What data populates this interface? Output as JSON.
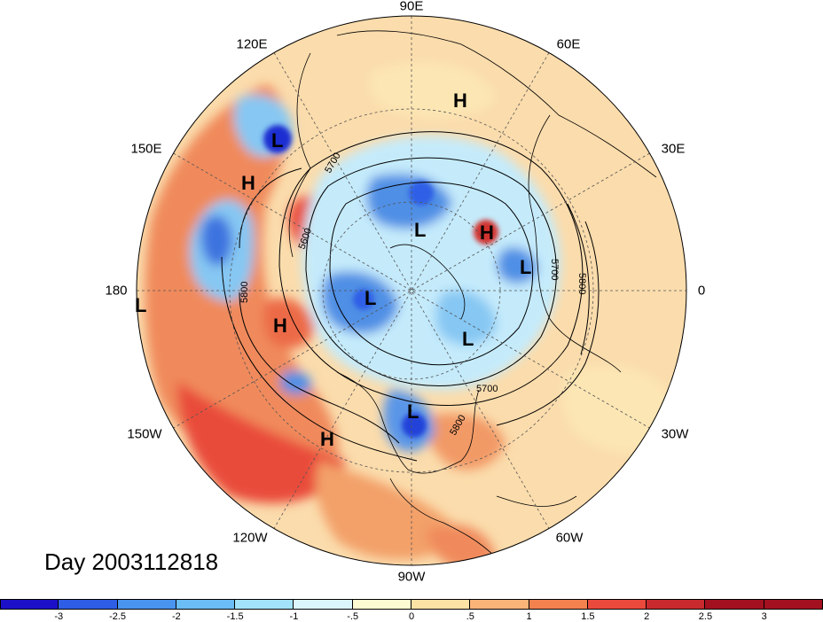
{
  "map": {
    "title": "Day 2003112818",
    "lon_labels": {
      "e90": "90E",
      "e120": "120E",
      "e60": "60E",
      "e150": "150E",
      "e30": "30E",
      "d180": "180",
      "d0": "0",
      "w150": "150W",
      "w30": "30W",
      "w120": "120W",
      "w60": "60W",
      "w90": "90W"
    },
    "contour_labels": {
      "c5600": "5600",
      "c5700a": "5700",
      "c5700b": "5700",
      "c5700c": "5700",
      "c5800a": "5800",
      "c5800b": "5800",
      "c5800c": "5800"
    },
    "pressure_centers": {
      "high_symbol": "H",
      "low_symbol": "L"
    },
    "colors": {
      "ocean_background": "#fbdcac",
      "contour": "#000000",
      "grid": "#555555"
    }
  },
  "colorbar": {
    "tick_labels": [
      "-3",
      "-2.5",
      "-2",
      "-1.5",
      "-1",
      "-.5",
      "0",
      ".5",
      "1",
      "1.5",
      "2",
      "2.5",
      "3"
    ],
    "colors": [
      "#1c10c9",
      "#2e5ee6",
      "#4894ee",
      "#6bbdf5",
      "#a2e3fb",
      "#dcf6fd",
      "#fdfbd2",
      "#fde2a6",
      "#fab478",
      "#f3824f",
      "#ea4a3c",
      "#c92a2e",
      "#a3101f"
    ]
  }
}
